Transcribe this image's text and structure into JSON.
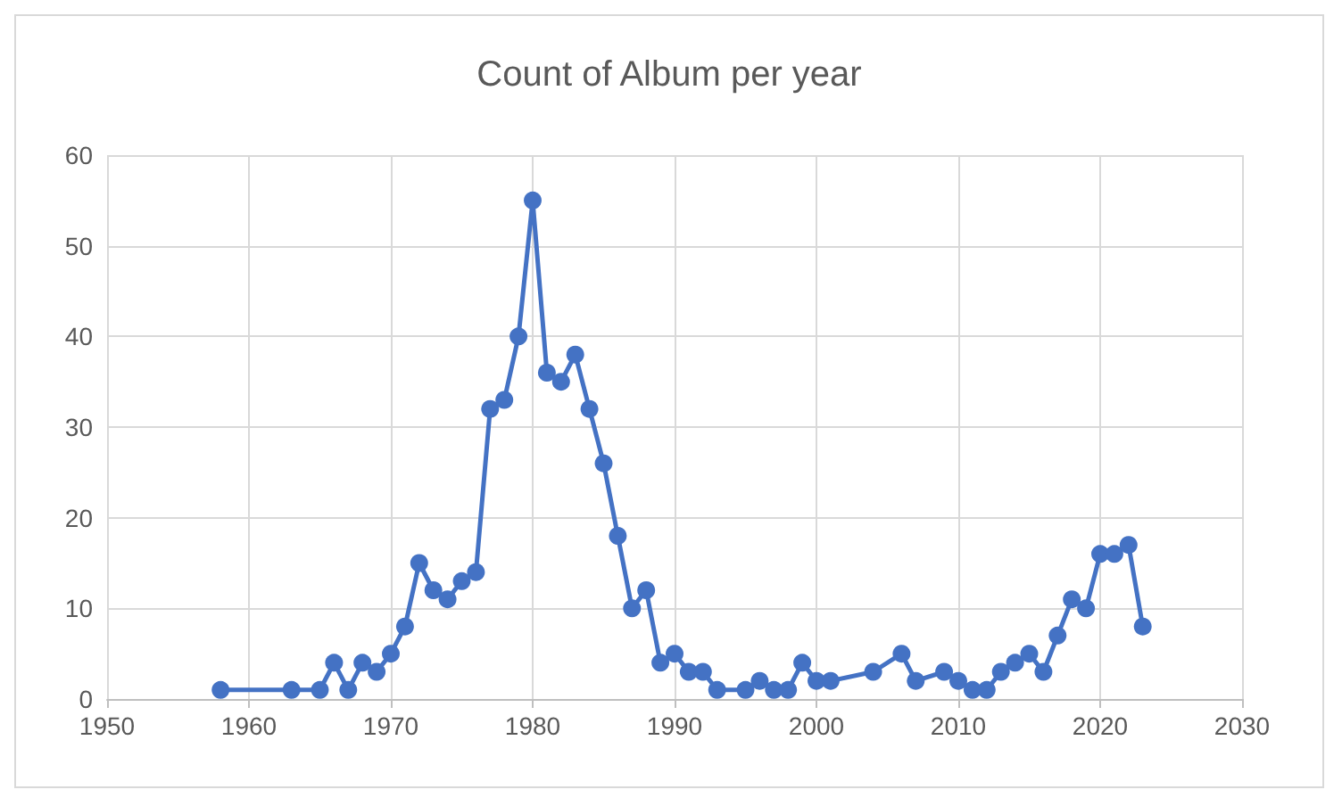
{
  "chart_data": {
    "type": "line",
    "title": "Count of Album per year",
    "x": [
      1958,
      1963,
      1965,
      1966,
      1967,
      1968,
      1969,
      1970,
      1971,
      1972,
      1973,
      1974,
      1975,
      1976,
      1977,
      1978,
      1979,
      1980,
      1981,
      1982,
      1983,
      1984,
      1985,
      1986,
      1987,
      1988,
      1989,
      1990,
      1991,
      1992,
      1993,
      1995,
      1996,
      1997,
      1998,
      1999,
      2000,
      2001,
      2004,
      2006,
      2007,
      2009,
      2010,
      2011,
      2012,
      2013,
      2014,
      2015,
      2016,
      2017,
      2018,
      2019,
      2020,
      2021,
      2022,
      2023
    ],
    "series": [
      {
        "color": "#4472c4",
        "values": [
          1,
          1,
          1,
          4,
          1,
          4,
          3,
          5,
          8,
          15,
          12,
          11,
          13,
          14,
          32,
          33,
          40,
          55,
          36,
          35,
          38,
          32,
          26,
          18,
          10,
          12,
          4,
          5,
          3,
          3,
          1,
          1,
          2,
          1,
          1,
          4,
          2,
          2,
          3,
          5,
          2,
          3,
          2,
          1,
          1,
          3,
          4,
          5,
          3,
          7,
          11,
          10,
          16,
          16,
          17,
          8
        ]
      }
    ],
    "xlim": [
      1950,
      2030
    ],
    "xticks": [
      1950,
      1960,
      1970,
      1980,
      1990,
      2000,
      2010,
      2020,
      2030
    ],
    "ylim": [
      0,
      60
    ],
    "yticks": [
      0,
      10,
      20,
      30,
      40,
      50,
      60
    ],
    "grid": true,
    "marker": "circle",
    "line_style": "solid"
  }
}
